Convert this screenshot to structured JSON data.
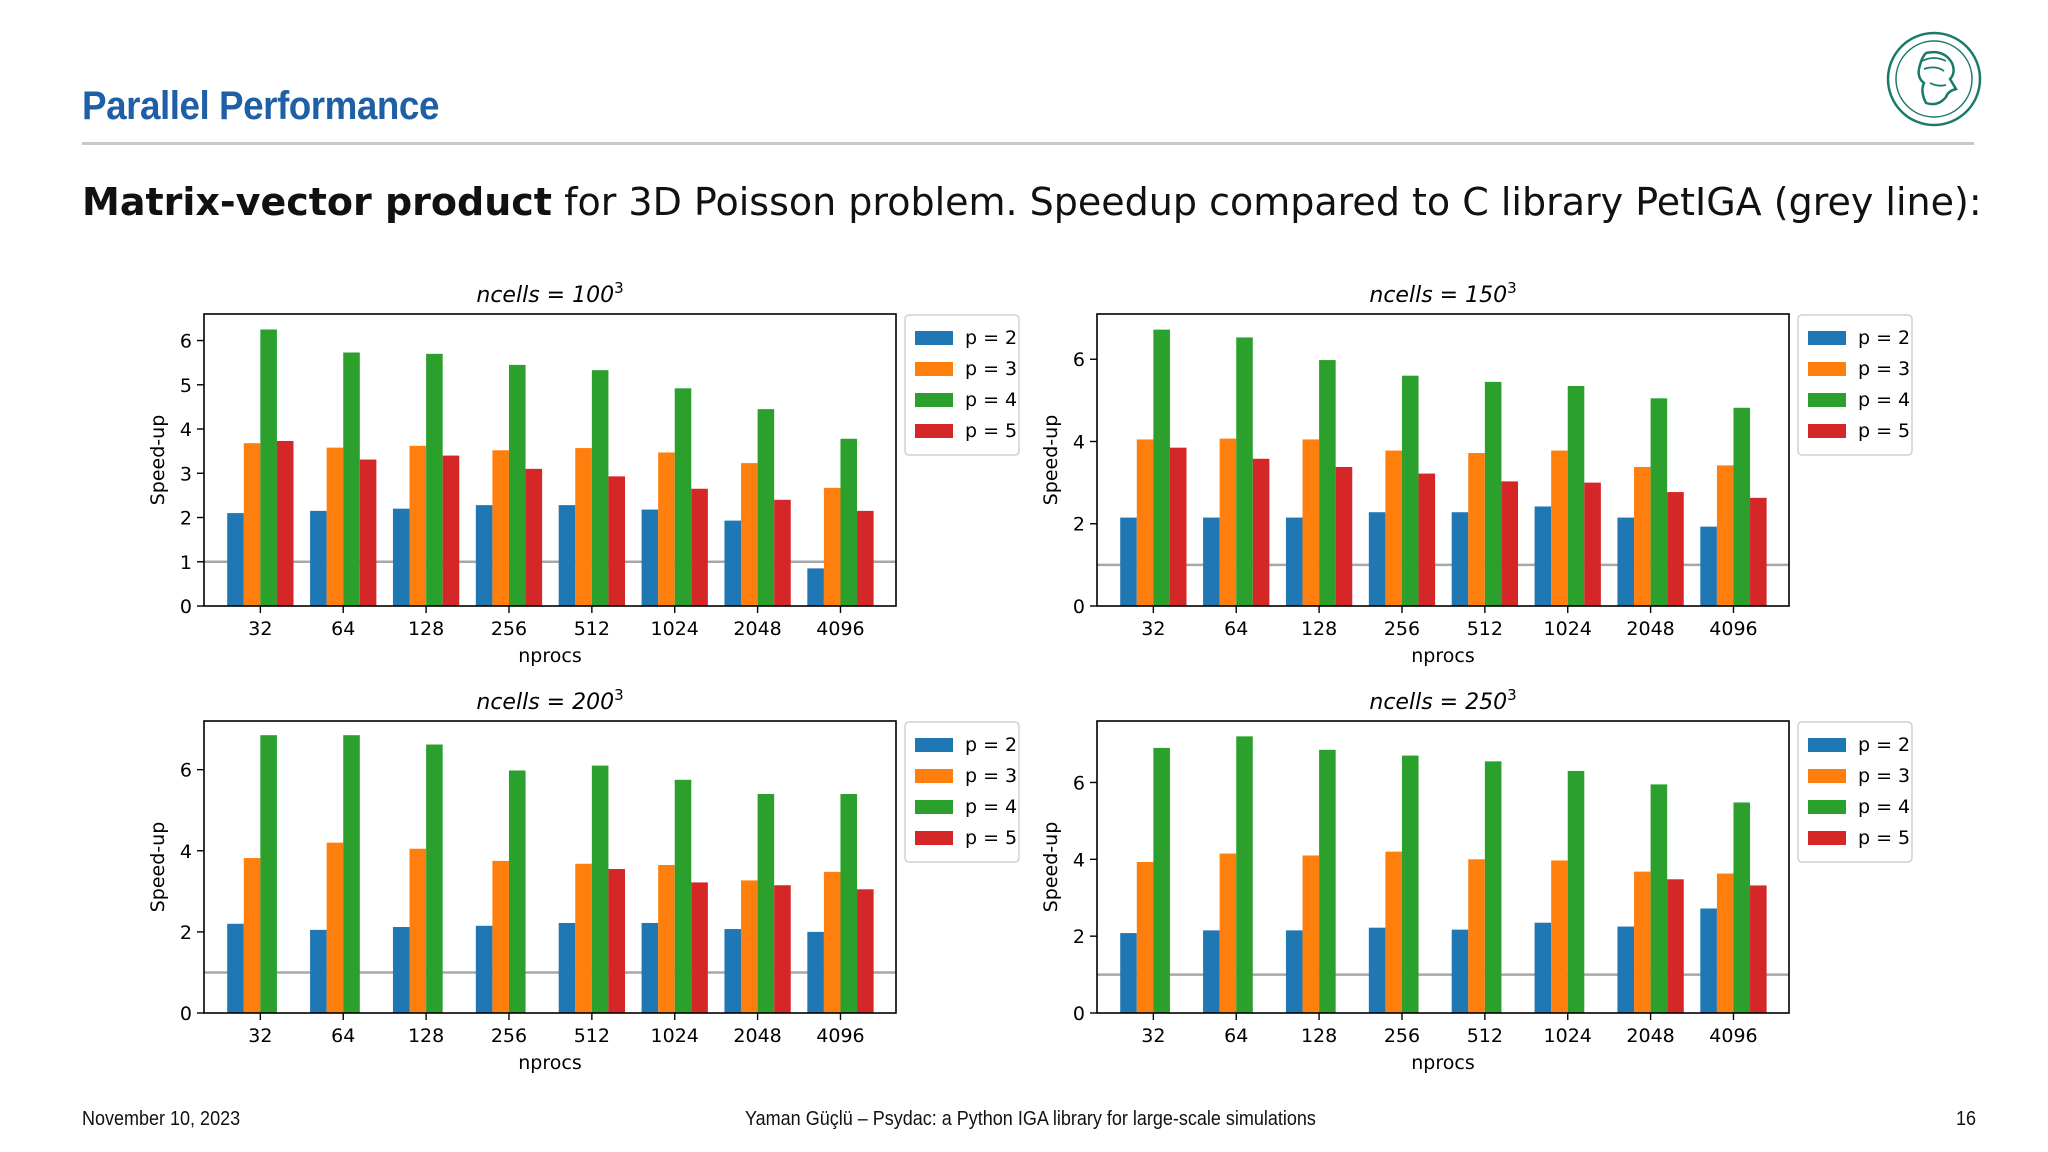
{
  "slide": {
    "title": "Parallel Performance",
    "subtitle_bold": "Matrix-vector product",
    "subtitle_rest": " for 3D Poisson problem. Speedup compared to C library PetIGA (grey line):",
    "footer_date": "November 10, 2023",
    "footer_center": "Yaman Güçlü – Psydac: a Python IGA library for large-scale simulations",
    "page_number": "16",
    "logo_icon": "max-planck-minerva-logo"
  },
  "colors": {
    "p2": "#1f77b4",
    "p3": "#ff7f0e",
    "p4": "#2ca02c",
    "p5": "#d62728",
    "reference": "#a8a8a8",
    "title": "#1f5fa5"
  },
  "chart_data": [
    {
      "type": "bar",
      "title_base": "ncells = 100",
      "title_exp": "3",
      "xlabel": "nprocs",
      "ylabel": "Speed-up",
      "categories": [
        "32",
        "64",
        "128",
        "256",
        "512",
        "1024",
        "2048",
        "4096"
      ],
      "ylim": [
        0,
        6.6
      ],
      "yticks": [
        0,
        1,
        2,
        3,
        4,
        5,
        6
      ],
      "reference_line": 1,
      "legend_position": "outside right-top",
      "series": [
        {
          "name": "p = 2",
          "values": [
            2.1,
            2.15,
            2.2,
            2.28,
            2.28,
            2.18,
            1.93,
            0.85
          ]
        },
        {
          "name": "p = 3",
          "values": [
            3.68,
            3.58,
            3.62,
            3.52,
            3.57,
            3.47,
            3.23,
            2.67
          ]
        },
        {
          "name": "p = 4",
          "values": [
            6.25,
            5.73,
            5.7,
            5.45,
            5.33,
            4.92,
            4.45,
            3.78
          ]
        },
        {
          "name": "p = 5",
          "values": [
            3.73,
            3.31,
            3.4,
            3.1,
            2.93,
            2.65,
            2.4,
            2.15
          ]
        }
      ]
    },
    {
      "type": "bar",
      "title_base": "ncells = 150",
      "title_exp": "3",
      "xlabel": "nprocs",
      "ylabel": "",
      "categories": [
        "32",
        "64",
        "128",
        "256",
        "512",
        "1024",
        "2048",
        "4096"
      ],
      "ylim": [
        0,
        7.1
      ],
      "yticks": [
        0,
        2,
        4,
        6
      ],
      "reference_line": 1,
      "legend_position": "outside right-top",
      "series": [
        {
          "name": "p = 2",
          "values": [
            2.15,
            2.15,
            2.15,
            2.28,
            2.28,
            2.42,
            2.15,
            1.93
          ]
        },
        {
          "name": "p = 3",
          "values": [
            4.05,
            4.07,
            4.05,
            3.78,
            3.72,
            3.78,
            3.38,
            3.42
          ]
        },
        {
          "name": "p = 4",
          "values": [
            6.72,
            6.53,
            5.98,
            5.6,
            5.45,
            5.35,
            5.05,
            4.82
          ]
        },
        {
          "name": "p = 5",
          "values": [
            3.85,
            3.58,
            3.38,
            3.22,
            3.03,
            3.0,
            2.77,
            2.63
          ]
        }
      ]
    },
    {
      "type": "bar",
      "title_base": "ncells = 200",
      "title_exp": "3",
      "xlabel": "nprocs",
      "ylabel": "Speed-up",
      "categories": [
        "32",
        "64",
        "128",
        "256",
        "512",
        "1024",
        "2048",
        "4096"
      ],
      "ylim": [
        0,
        7.2
      ],
      "yticks": [
        0,
        2,
        4,
        6
      ],
      "reference_line": 1,
      "legend_position": "outside right-top",
      "series": [
        {
          "name": "p = 2",
          "values": [
            2.2,
            2.05,
            2.12,
            2.15,
            2.22,
            2.22,
            2.07,
            2.0
          ]
        },
        {
          "name": "p = 3",
          "values": [
            3.82,
            4.2,
            4.05,
            3.75,
            3.68,
            3.65,
            3.27,
            3.48
          ]
        },
        {
          "name": "p = 4",
          "values": [
            6.85,
            6.85,
            6.62,
            5.98,
            6.1,
            5.75,
            5.4,
            5.4
          ]
        },
        {
          "name": "p = 5",
          "values": [
            0,
            0,
            0,
            0,
            3.55,
            3.22,
            3.15,
            3.05
          ]
        }
      ]
    },
    {
      "type": "bar",
      "title_base": "ncells = 250",
      "title_exp": "3",
      "xlabel": "nprocs",
      "ylabel": "",
      "categories": [
        "32",
        "64",
        "128",
        "256",
        "512",
        "1024",
        "2048",
        "4096"
      ],
      "ylim": [
        0,
        7.6
      ],
      "yticks": [
        0,
        2,
        4,
        6
      ],
      "reference_line": 1,
      "legend_position": "outside right-top",
      "series": [
        {
          "name": "p = 2",
          "values": [
            2.08,
            2.15,
            2.15,
            2.22,
            2.17,
            2.35,
            2.25,
            2.72
          ]
        },
        {
          "name": "p = 3",
          "values": [
            3.93,
            4.15,
            4.1,
            4.2,
            4.0,
            3.97,
            3.68,
            3.63
          ]
        },
        {
          "name": "p = 4",
          "values": [
            6.9,
            7.2,
            6.85,
            6.7,
            6.55,
            6.3,
            5.95,
            5.48
          ]
        },
        {
          "name": "p = 5",
          "values": [
            0,
            0,
            0,
            0,
            0,
            0,
            3.48,
            3.32
          ]
        }
      ]
    }
  ]
}
